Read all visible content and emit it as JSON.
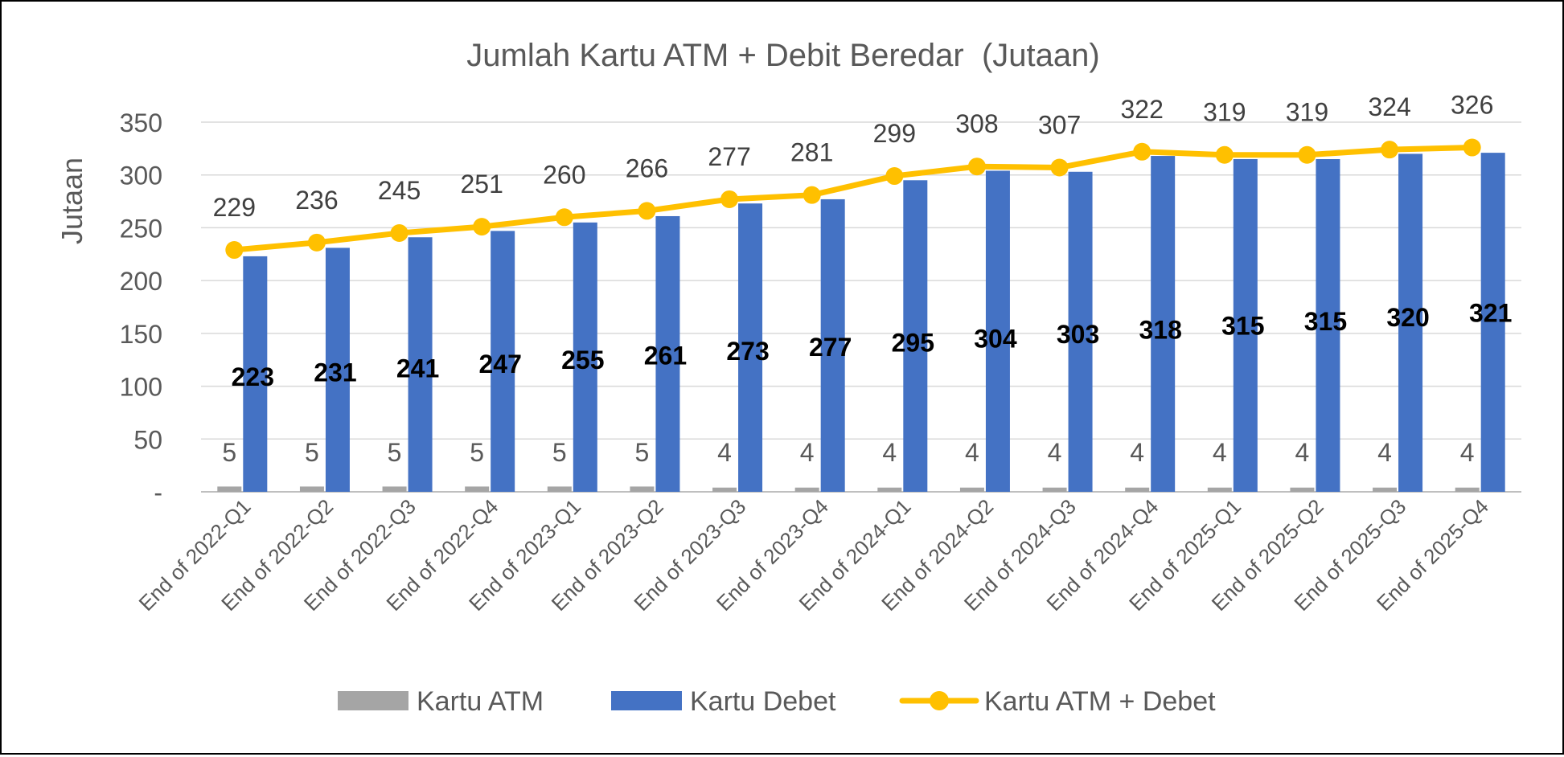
{
  "chart_data": {
    "type": "bar",
    "title": "Jumlah Kartu ATM + Debit Beredar  (Jutaan)",
    "ylabel": "Jutaan",
    "xlabel": "",
    "ylim": [
      0,
      350
    ],
    "yticks": [
      0,
      50,
      100,
      150,
      200,
      250,
      300,
      350
    ],
    "ytick_labels": [
      "-",
      "50",
      "100",
      "150",
      "200",
      "250",
      "300",
      "350"
    ],
    "grid": true,
    "legend_position": "bottom",
    "categories": [
      "End of 2022-Q1",
      "End of 2022-Q2",
      "End of 2022-Q3",
      "End of 2022-Q4",
      "End of 2023-Q1",
      "End of 2023-Q2",
      "End of 2023-Q3",
      "End of 2023-Q4",
      "End of 2024-Q1",
      "End of 2024-Q2",
      "End of 2024-Q3",
      "End of 2024-Q4",
      "End of 2025-Q1",
      "End of 2025-Q2",
      "End of 2025-Q3",
      "End of 2025-Q4"
    ],
    "series": [
      {
        "name": "Kartu ATM",
        "kind": "bar",
        "color": "#a5a5a5",
        "values": [
          5,
          5,
          5,
          5,
          5,
          5,
          4,
          4,
          4,
          4,
          4,
          4,
          4,
          4,
          4,
          4
        ]
      },
      {
        "name": "Kartu Debet",
        "kind": "bar",
        "color": "#4472c4",
        "values": [
          223,
          231,
          241,
          247,
          255,
          261,
          273,
          277,
          295,
          304,
          303,
          318,
          315,
          315,
          320,
          321
        ]
      },
      {
        "name": "Kartu ATM + Debet",
        "kind": "line",
        "color": "#ffc000",
        "values": [
          229,
          236,
          245,
          251,
          260,
          266,
          277,
          281,
          299,
          308,
          307,
          322,
          319,
          319,
          324,
          326
        ]
      }
    ]
  }
}
